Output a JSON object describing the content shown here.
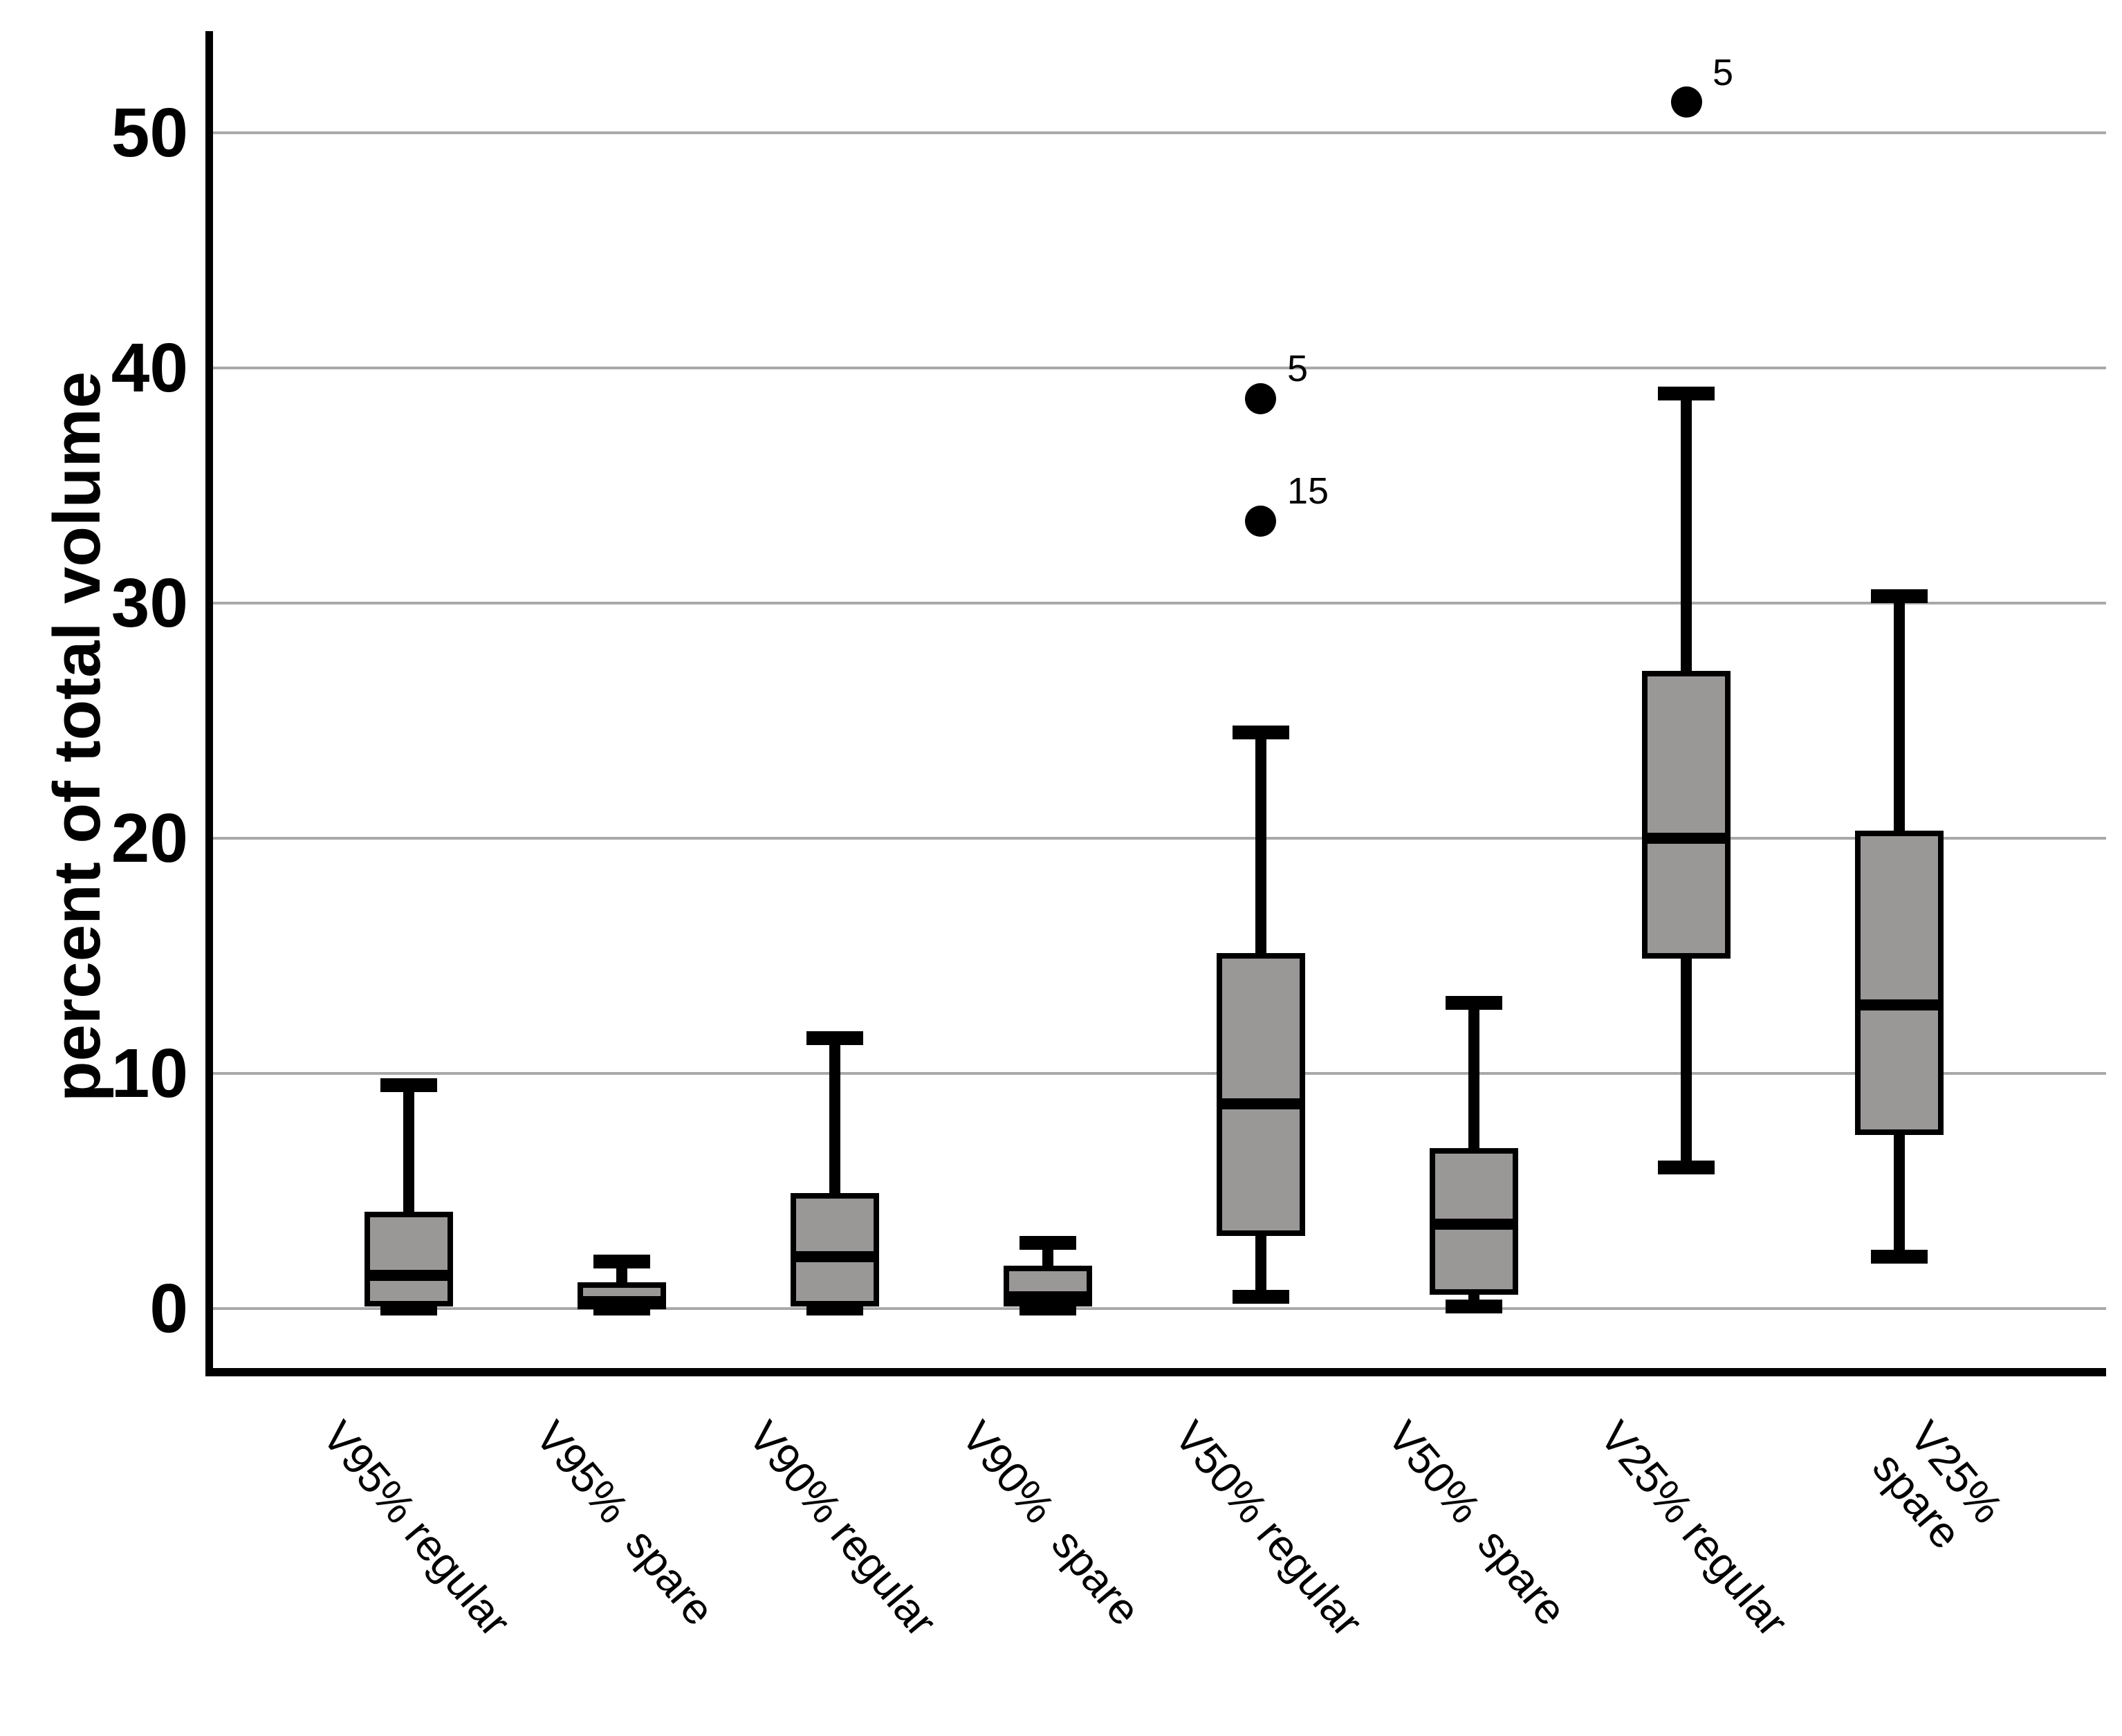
{
  "chart_data": {
    "type": "boxplot",
    "title": "",
    "ylabel": "percent of total volume",
    "xlabel": "",
    "ylim": [
      -2.9,
      54.5
    ],
    "yticks": [
      0,
      10,
      20,
      30,
      40,
      50
    ],
    "grid": "horizontal-gridlines-on",
    "legend": "none",
    "colors": {
      "box_fill": "#9a9797",
      "line": "#000000",
      "gridline": "#a9a9a9",
      "background": "#ffffff"
    },
    "categories": [
      "V95% regular",
      "V95%  spare",
      "V90% regular",
      "V90%  spare",
      "V50% regular",
      "V50%  spare",
      "V25% regular",
      "V25% spare"
    ],
    "x_tick_label_lines": [
      [
        "V95% regular"
      ],
      [
        "V95%  spare"
      ],
      [
        "V90% regular"
      ],
      [
        "V90%  spare"
      ],
      [
        "V50% regular"
      ],
      [
        "V50%  spare"
      ],
      [
        "V25% regular"
      ],
      [
        "V25%",
        "spare"
      ]
    ],
    "series": [
      {
        "category": "V95% regular",
        "min": 0,
        "q1": 0.2,
        "median": 1.4,
        "q3": 4.0,
        "max": 9.5,
        "outliers": []
      },
      {
        "category": "V95% spare",
        "min": 0,
        "q1": 0.1,
        "median": 0.3,
        "q3": 1.0,
        "max": 2.0,
        "outliers": []
      },
      {
        "category": "V90% regular",
        "min": 0,
        "q1": 0.2,
        "median": 2.2,
        "q3": 4.8,
        "max": 11.5,
        "outliers": []
      },
      {
        "category": "V90% spare",
        "min": 0,
        "q1": 0.2,
        "median": 0.5,
        "q3": 1.7,
        "max": 2.8,
        "outliers": []
      },
      {
        "category": "V50% regular",
        "min": 0.5,
        "q1": 3.2,
        "median": 8.7,
        "q3": 15.0,
        "max": 24.5,
        "outliers": [
          {
            "value": 38.7,
            "case": "5"
          },
          {
            "value": 33.5,
            "case": "15"
          }
        ]
      },
      {
        "category": "V50% spare",
        "min": 0.1,
        "q1": 0.7,
        "median": 3.6,
        "q3": 6.7,
        "max": 13.0,
        "outliers": []
      },
      {
        "category": "V25% regular",
        "min": 6.0,
        "q1": 15.0,
        "median": 20.0,
        "q3": 27.0,
        "max": 38.9,
        "outliers": [
          {
            "value": 51.3,
            "case": "5"
          }
        ]
      },
      {
        "category": "V25% spare",
        "min": 2.2,
        "q1": 7.5,
        "median": 12.9,
        "q3": 20.2,
        "max": 30.3,
        "outliers": []
      }
    ]
  }
}
